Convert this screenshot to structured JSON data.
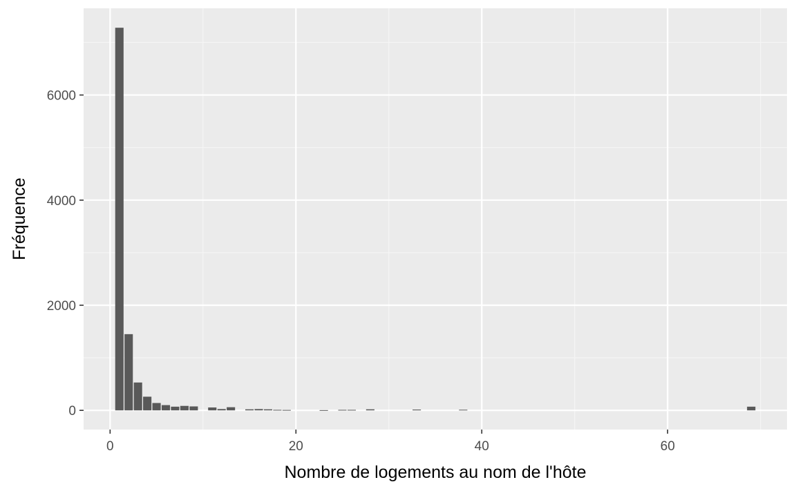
{
  "chart_data": {
    "type": "bar",
    "xlabel": "Nombre de logements au nom de l'hôte",
    "ylabel": "Fréquence",
    "xlim": [
      -2.85,
      72.85
    ],
    "ylim": [
      -365,
      7650
    ],
    "x_ticks": [
      0,
      20,
      40,
      60
    ],
    "y_ticks": [
      0,
      2000,
      4000,
      6000
    ],
    "x_tick_labels": [
      "0",
      "20",
      "40",
      "60"
    ],
    "y_tick_labels": [
      "0",
      "2000",
      "4000",
      "6000"
    ],
    "grid": true,
    "legend": "none",
    "x": [
      1,
      2,
      3,
      4,
      5,
      6,
      7,
      8,
      9,
      11,
      12,
      13,
      15,
      16,
      17,
      18,
      19,
      23,
      25,
      26,
      28,
      33,
      38,
      69
    ],
    "values": [
      7280,
      1450,
      530,
      260,
      140,
      100,
      70,
      85,
      75,
      55,
      25,
      60,
      20,
      25,
      20,
      10,
      8,
      5,
      10,
      10,
      20,
      15,
      12,
      70
    ],
    "bar_width": 0.9,
    "colors": {
      "bar": "#595959",
      "panel": "#ebebeb",
      "grid_major": "#ffffff",
      "grid_minor": "#f5f5f5",
      "tick": "#333333"
    }
  }
}
